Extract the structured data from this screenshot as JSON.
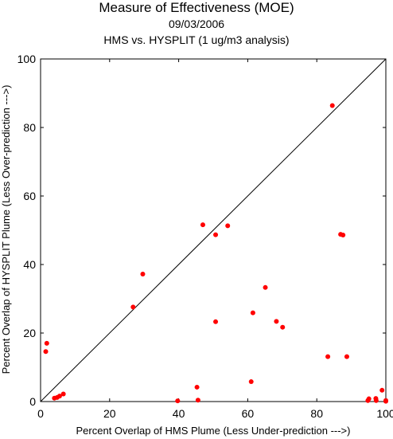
{
  "chart_data": {
    "type": "scatter",
    "title": "Measure of Effectiveness (MOE)",
    "subtitle": "09/03/2006",
    "subtitle2": "HMS vs. HYSPLIT  (1 ug/m3 analysis)",
    "xlabel": "Percent Overlap of HMS Plume (Less Under-prediction --->)",
    "ylabel": "Percent Overlap of HYSPLIT Plume (Less Over-prediction --->)",
    "xlim": [
      0,
      100
    ],
    "ylim": [
      0,
      100
    ],
    "xticks": [
      "0",
      "20",
      "40",
      "60",
      "80",
      "100"
    ],
    "yticks": [
      "0",
      "20",
      "40",
      "60",
      "80",
      "100"
    ],
    "reference_line": "y = x",
    "grid": false,
    "marker_color": "#ff0000",
    "points": [
      {
        "x": 1.8,
        "y": 17.0
      },
      {
        "x": 1.5,
        "y": 14.6
      },
      {
        "x": 4.0,
        "y": 1.0
      },
      {
        "x": 4.8,
        "y": 1.2
      },
      {
        "x": 5.5,
        "y": 1.6
      },
      {
        "x": 6.6,
        "y": 2.2
      },
      {
        "x": 26.8,
        "y": 27.6
      },
      {
        "x": 29.6,
        "y": 37.2
      },
      {
        "x": 39.7,
        "y": 0.2
      },
      {
        "x": 45.3,
        "y": 4.2
      },
      {
        "x": 45.6,
        "y": 0.4
      },
      {
        "x": 47.0,
        "y": 51.6
      },
      {
        "x": 50.7,
        "y": 48.7
      },
      {
        "x": 50.7,
        "y": 23.3
      },
      {
        "x": 54.2,
        "y": 51.3
      },
      {
        "x": 61.0,
        "y": 5.8
      },
      {
        "x": 61.5,
        "y": 25.9
      },
      {
        "x": 65.1,
        "y": 33.3
      },
      {
        "x": 68.3,
        "y": 23.4
      },
      {
        "x": 70.1,
        "y": 21.7
      },
      {
        "x": 83.2,
        "y": 13.1
      },
      {
        "x": 84.5,
        "y": 86.4
      },
      {
        "x": 86.9,
        "y": 48.8
      },
      {
        "x": 87.6,
        "y": 48.6
      },
      {
        "x": 88.7,
        "y": 13.1
      },
      {
        "x": 94.8,
        "y": 0.3
      },
      {
        "x": 95.1,
        "y": 0.8
      },
      {
        "x": 97.1,
        "y": 0.9
      },
      {
        "x": 97.2,
        "y": 0.3
      },
      {
        "x": 98.9,
        "y": 3.3
      },
      {
        "x": 100.0,
        "y": 0.3
      },
      {
        "x": 100.0,
        "y": 0.1
      }
    ]
  }
}
